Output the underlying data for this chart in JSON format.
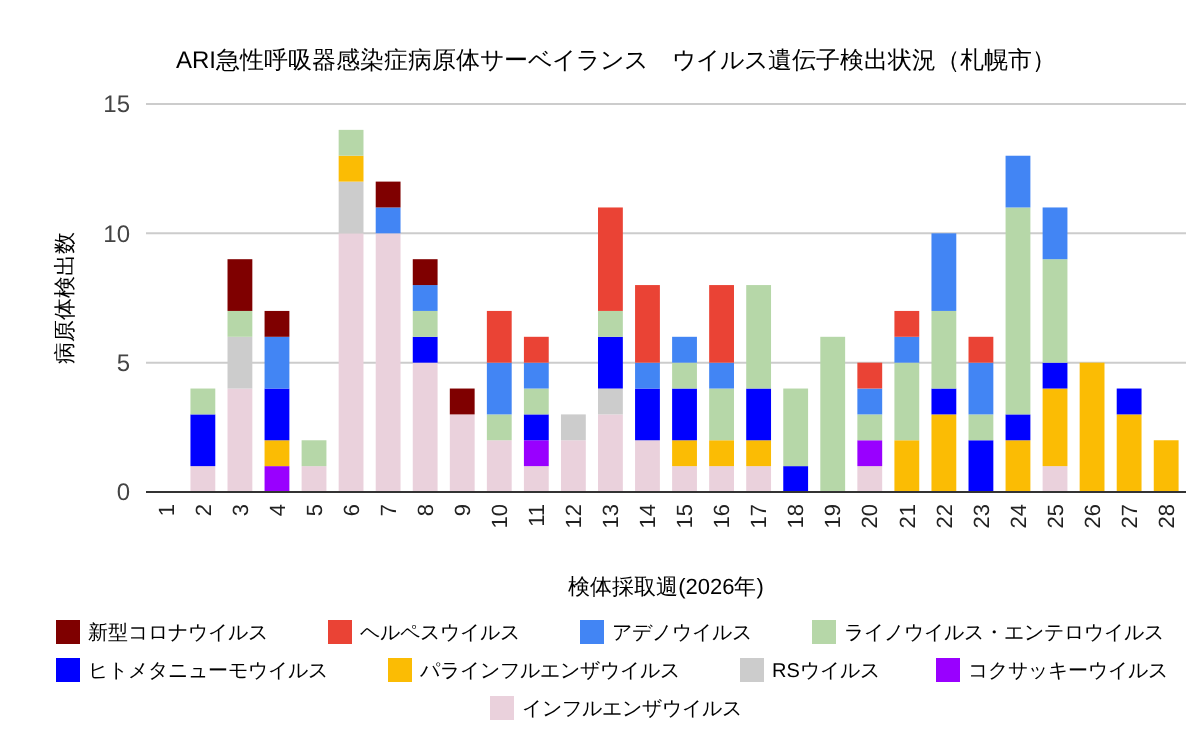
{
  "chart_data": {
    "type": "bar",
    "stacked": true,
    "title": "ARI急性呼吸器感染症病原体サーベイランス　ウイルス遺伝子検出状況（札幌市）",
    "xlabel": "検体採取週(2026年)",
    "ylabel": "病原体検出数",
    "categories": [
      "1",
      "2",
      "3",
      "4",
      "5",
      "6",
      "7",
      "8",
      "9",
      "10",
      "11",
      "12",
      "13",
      "14",
      "15",
      "16",
      "17",
      "18",
      "19",
      "20",
      "21",
      "22",
      "23",
      "24",
      "25",
      "26",
      "27",
      "28"
    ],
    "ylim": [
      0,
      15
    ],
    "yticks": [
      0,
      5,
      10,
      15
    ],
    "grid": "y",
    "legend": "bottom",
    "series": [
      {
        "name": "インフルエンザウイルス",
        "color": "#ead1dc",
        "values": [
          0,
          1,
          4,
          0,
          1,
          10,
          10,
          5,
          3,
          2,
          1,
          2,
          3,
          2,
          1,
          1,
          1,
          0,
          0,
          1,
          0,
          0,
          0,
          0,
          1,
          0,
          0,
          0
        ]
      },
      {
        "name": "コクサッキーウイルス",
        "color": "#9900ff",
        "values": [
          0,
          0,
          0,
          1,
          0,
          0,
          0,
          0,
          0,
          0,
          1,
          0,
          0,
          0,
          0,
          0,
          0,
          0,
          0,
          1,
          0,
          0,
          0,
          0,
          0,
          0,
          0,
          0
        ]
      },
      {
        "name": "RSウイルス",
        "color": "#cccccc",
        "values": [
          0,
          0,
          2,
          0,
          0,
          2,
          0,
          0,
          0,
          0,
          0,
          1,
          1,
          0,
          0,
          0,
          0,
          0,
          0,
          0,
          0,
          0,
          0,
          0,
          0,
          0,
          0,
          0
        ]
      },
      {
        "name": "パラインフルエンザウイルス",
        "color": "#fbbc04",
        "values": [
          0,
          0,
          0,
          1,
          0,
          1,
          0,
          0,
          0,
          0,
          0,
          0,
          0,
          0,
          1,
          1,
          1,
          0,
          0,
          0,
          2,
          3,
          0,
          2,
          3,
          5,
          3,
          2
        ]
      },
      {
        "name": "ヒトメタニューモウイルス",
        "color": "#0000ff",
        "values": [
          0,
          2,
          0,
          2,
          0,
          0,
          0,
          1,
          0,
          0,
          1,
          0,
          2,
          2,
          2,
          0,
          2,
          1,
          0,
          0,
          0,
          1,
          2,
          1,
          1,
          0,
          1,
          0
        ]
      },
      {
        "name": "ライノウイルス・エンテロウイルス",
        "color": "#b6d7a8",
        "values": [
          0,
          1,
          1,
          0,
          1,
          1,
          0,
          1,
          0,
          1,
          1,
          0,
          1,
          0,
          1,
          2,
          4,
          3,
          6,
          1,
          3,
          3,
          1,
          8,
          4,
          0,
          0,
          0
        ]
      },
      {
        "name": "アデノウイルス",
        "color": "#4285f4",
        "values": [
          0,
          0,
          0,
          2,
          0,
          0,
          1,
          1,
          0,
          2,
          1,
          0,
          0,
          1,
          1,
          1,
          0,
          0,
          0,
          1,
          1,
          3,
          2,
          2,
          2,
          0,
          0,
          0
        ]
      },
      {
        "name": "ヘルペスウイルス",
        "color": "#ea4335",
        "values": [
          0,
          0,
          0,
          0,
          0,
          0,
          0,
          0,
          0,
          2,
          1,
          0,
          4,
          3,
          0,
          3,
          0,
          0,
          0,
          1,
          1,
          0,
          1,
          0,
          0,
          0,
          0,
          0
        ]
      },
      {
        "name": "新型コロナウイルス",
        "color": "#7f0000",
        "values": [
          0,
          0,
          2,
          1,
          0,
          0,
          1,
          1,
          1,
          0,
          0,
          0,
          0,
          0,
          0,
          0,
          0,
          0,
          0,
          0,
          0,
          0,
          0,
          0,
          0,
          0,
          0,
          0
        ]
      }
    ]
  }
}
